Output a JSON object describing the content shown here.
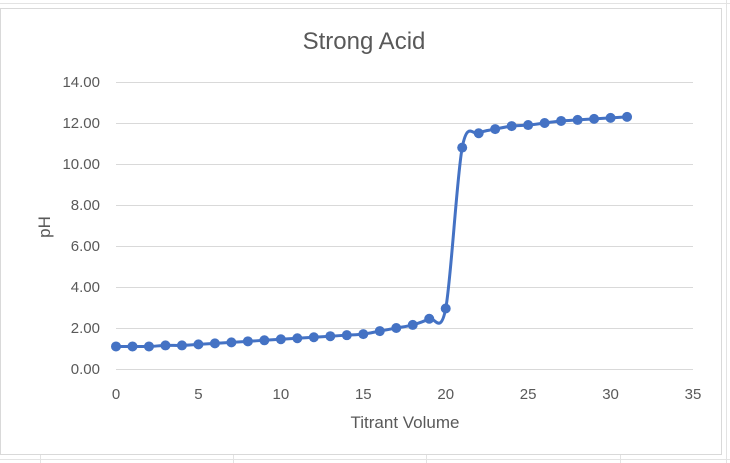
{
  "chart_data": {
    "type": "scatter",
    "subtype": "smooth-line-with-markers",
    "title": "Strong Acid",
    "xlabel": "Titrant Volume",
    "ylabel": "pH",
    "xlim": [
      0,
      35
    ],
    "ylim": [
      0,
      14
    ],
    "xticks": [
      0,
      5,
      10,
      15,
      20,
      25,
      30,
      35
    ],
    "yticks": [
      0,
      2,
      4,
      6,
      8,
      10,
      12,
      14
    ],
    "xtick_labels": [
      "0",
      "5",
      "10",
      "15",
      "20",
      "25",
      "30",
      "35"
    ],
    "ytick_labels": [
      "0.00",
      "2.00",
      "4.00",
      "6.00",
      "8.00",
      "10.00",
      "12.00",
      "14.00"
    ],
    "grid": "horizontal",
    "legend": "none",
    "series": [
      {
        "color": "#4472c4",
        "x": [
          0,
          1,
          2,
          3,
          4,
          5,
          6,
          7,
          8,
          9,
          10,
          11,
          12,
          13,
          14,
          15,
          16,
          17,
          18,
          19,
          20,
          21,
          22,
          23,
          24,
          25,
          26,
          27,
          28,
          29,
          30,
          31
        ],
        "y": [
          1.1,
          1.1,
          1.1,
          1.15,
          1.15,
          1.2,
          1.25,
          1.3,
          1.35,
          1.4,
          1.45,
          1.5,
          1.55,
          1.6,
          1.65,
          1.7,
          1.85,
          2.0,
          2.15,
          2.45,
          2.95,
          10.8,
          11.5,
          11.7,
          11.85,
          11.9,
          12.0,
          12.1,
          12.15,
          12.2,
          12.25,
          12.3
        ]
      }
    ]
  }
}
